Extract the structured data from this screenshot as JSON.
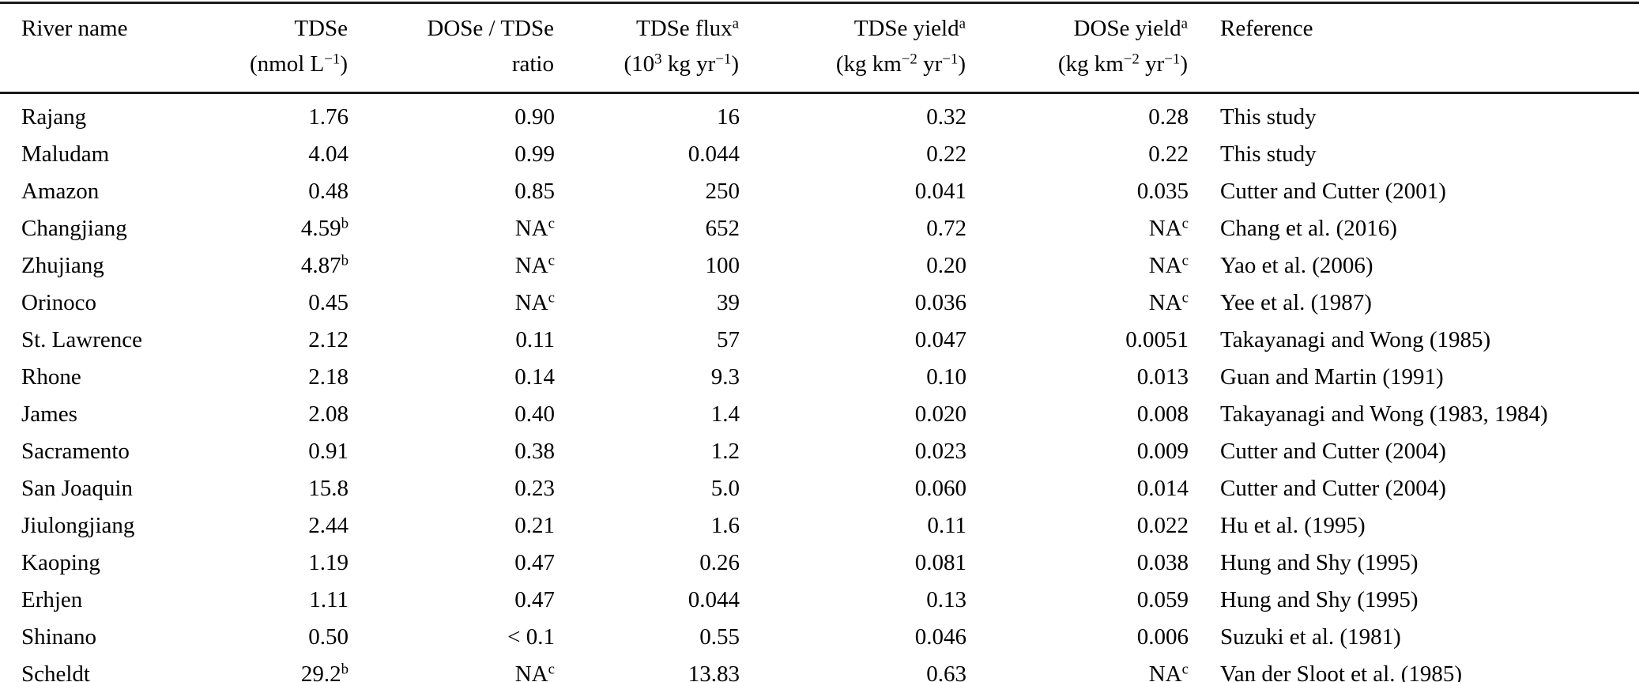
{
  "table": {
    "columns": [
      {
        "key": "river-name",
        "label": "River name",
        "unit": ""
      },
      {
        "key": "tdse",
        "label": "TDSe",
        "unit": "(nmol L^{−1})"
      },
      {
        "key": "dose-tdse-ratio",
        "label": "DOSe / TDSe",
        "unit": "ratio"
      },
      {
        "key": "tdse-flux",
        "label": "TDSe flux^{a}",
        "unit": "(10^{3} kg yr^{−1})"
      },
      {
        "key": "tdse-yield",
        "label": "TDSe yield^{a}",
        "unit": "(kg km^{−2} yr^{−1})"
      },
      {
        "key": "dose-yield",
        "label": "DOSe yield^{a}",
        "unit": "(kg km^{−2} yr^{−1})"
      },
      {
        "key": "reference",
        "label": "Reference",
        "unit": ""
      }
    ],
    "rows": [
      [
        "Rajang",
        "1.76",
        "0.90",
        "16",
        "0.32",
        "0.28",
        "This study"
      ],
      [
        "Maludam",
        "4.04",
        "0.99",
        "0.044",
        "0.22",
        "0.22",
        "This study"
      ],
      [
        "Amazon",
        "0.48",
        "0.85",
        "250",
        "0.041",
        "0.035",
        "Cutter and Cutter (2001)"
      ],
      [
        "Changjiang",
        "4.59^{b}",
        "NA^{c}",
        "652",
        "0.72",
        "NA^{c}",
        "Chang et al. (2016)"
      ],
      [
        "Zhujiang",
        "4.87^{b}",
        "NA^{c}",
        "100",
        "0.20",
        "NA^{c}",
        "Yao et al. (2006)"
      ],
      [
        "Orinoco",
        "0.45",
        "NA^{c}",
        "39",
        "0.036",
        "NA^{c}",
        "Yee et al. (1987)"
      ],
      [
        "St. Lawrence",
        "2.12",
        "0.11",
        "57",
        "0.047",
        "0.0051",
        "Takayanagi and Wong (1985)"
      ],
      [
        "Rhone",
        "2.18",
        "0.14",
        "9.3",
        "0.10",
        "0.013",
        "Guan and Martin (1991)"
      ],
      [
        "James",
        "2.08",
        "0.40",
        "1.4",
        "0.020",
        "0.008",
        "Takayanagi and Wong (1983, 1984)"
      ],
      [
        "Sacramento",
        "0.91",
        "0.38",
        "1.2",
        "0.023",
        "0.009",
        "Cutter and Cutter (2004)"
      ],
      [
        "San Joaquin",
        "15.8",
        "0.23",
        "5.0",
        "0.060",
        "0.014",
        "Cutter and Cutter (2004)"
      ],
      [
        "Jiulongjiang",
        "2.44",
        "0.21",
        "1.6",
        "0.11",
        "0.022",
        "Hu et al. (1995)"
      ],
      [
        "Kaoping",
        "1.19",
        "0.47",
        "0.26",
        "0.081",
        "0.038",
        "Hung and Shy (1995)"
      ],
      [
        "Erhjen",
        "1.11",
        "0.47",
        "0.044",
        "0.13",
        "0.059",
        "Hung and Shy (1995)"
      ],
      [
        "Shinano",
        "0.50",
        "< 0.1",
        "0.55",
        "0.046",
        "0.006",
        "Suzuki et al. (1981)"
      ],
      [
        "Scheldt",
        "29.2^{b}",
        "NA^{c}",
        "13.83",
        "0.63",
        "NA^{c}",
        "Van der Sloot et al. (1985)"
      ]
    ]
  }
}
